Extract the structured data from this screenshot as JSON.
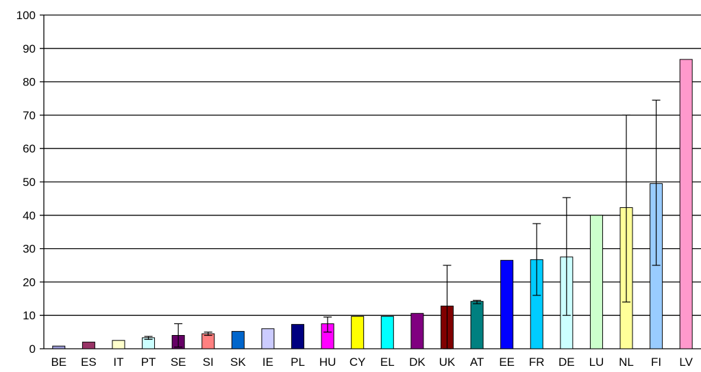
{
  "chart_data": {
    "type": "bar",
    "title": "",
    "xlabel": "",
    "ylabel": "",
    "ylim": [
      0,
      100
    ],
    "yticks": [
      0,
      10,
      20,
      30,
      40,
      50,
      60,
      70,
      80,
      90,
      100
    ],
    "grid": true,
    "legend": "none",
    "categories": [
      "BE",
      "ES",
      "IT",
      "PT",
      "SE",
      "SI",
      "SK",
      "IE",
      "PL",
      "HU",
      "CY",
      "EL",
      "DK",
      "UK",
      "AT",
      "EE",
      "FR",
      "DE",
      "LU",
      "NL",
      "FI",
      "LV"
    ],
    "values": [
      0.8,
      2,
      2.5,
      3.3,
      4,
      4.5,
      5.2,
      6,
      7.3,
      7.5,
      9.7,
      9.7,
      10.6,
      12.8,
      14.2,
      26.5,
      26.7,
      27.5,
      40,
      42.3,
      49.5,
      86.7
    ],
    "error_low": [
      null,
      null,
      null,
      2.8,
      0.5,
      4,
      null,
      null,
      null,
      5,
      null,
      null,
      null,
      0,
      13.5,
      null,
      16,
      10,
      null,
      14,
      25,
      null
    ],
    "error_high": [
      null,
      null,
      null,
      3.7,
      7.5,
      5,
      null,
      null,
      null,
      9.5,
      null,
      null,
      null,
      25,
      14.5,
      null,
      37.5,
      45.3,
      null,
      70,
      74.5,
      null
    ],
    "colors": [
      "#9b9bd6",
      "#993366",
      "#ffffcc",
      "#ccffff",
      "#660066",
      "#ff8080",
      "#0066cc",
      "#ccccff",
      "#000080",
      "#ff00ff",
      "#ffff00",
      "#00ffff",
      "#800080",
      "#800000",
      "#008080",
      "#0000ff",
      "#00ccff",
      "#ccffff",
      "#ccffcc",
      "#ffff99",
      "#99ccff",
      "#ff99cc"
    ]
  }
}
